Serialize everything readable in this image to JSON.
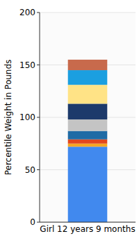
{
  "chart_data": {
    "type": "bar",
    "stacked": true,
    "y_label": "Percentile Weight in Pounds",
    "categories": [
      "Girl 12 years 9 months"
    ],
    "series": [
      {
        "color": "#4189ee",
        "values": [
          72
        ]
      },
      {
        "color": "#f5a623",
        "values": [
          3
        ]
      },
      {
        "color": "#e2471c",
        "values": [
          4
        ]
      },
      {
        "color": "#1f6ba5",
        "values": [
          8
        ]
      },
      {
        "color": "#c4c4c4",
        "values": [
          11
        ]
      },
      {
        "color": "#1d3a6b",
        "values": [
          15
        ]
      },
      {
        "color": "#ffe386",
        "values": [
          18
        ]
      },
      {
        "color": "#1b9fe0",
        "values": [
          14
        ]
      },
      {
        "color": "#c86a4c",
        "values": [
          10
        ]
      }
    ],
    "ylim": [
      0,
      200
    ],
    "yticks": [
      0,
      50,
      100,
      150,
      200
    ],
    "grid": true
  }
}
